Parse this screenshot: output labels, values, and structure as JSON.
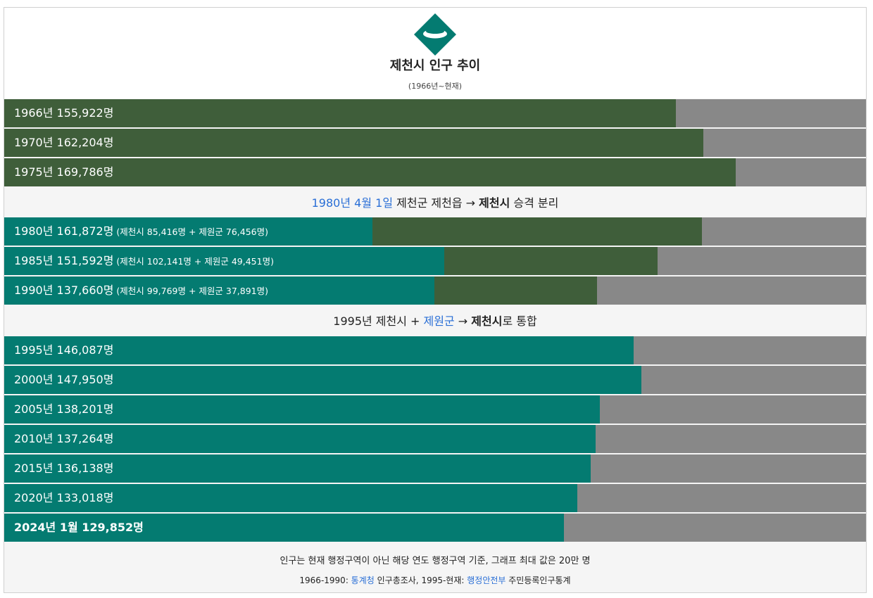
{
  "header": {
    "title": "제천시 인구 추이",
    "subtitle": "(1966년~현재)"
  },
  "colors": {
    "jecheon_city": "#047b71",
    "jewon_gun": "#3f5e3a",
    "remainder": "#888888",
    "link": "#2a6fd6"
  },
  "notes": {
    "split": {
      "date": "1980년 4월 1일",
      "text_a": " 제천군 제천읍 → ",
      "bold": "제천시",
      "text_b": " 승격 분리"
    },
    "merge": {
      "text_a": "1995년 제천시 + ",
      "link": "제원군",
      "text_b": " → ",
      "bold": "제천시",
      "text_c": "로 통합"
    }
  },
  "footer": {
    "line1": "인구는 현재 행정구역이 아닌 해당 연도 행정구역 기준, 그래프 최대 값은 20만 명",
    "line2_a": "1966-1990: ",
    "line2_link1": "통계청",
    "line2_b": " 인구총조사, 1995-현재: ",
    "line2_link2": "행정안전부",
    "line2_c": " 주민등록인구통계"
  },
  "chart_data": {
    "type": "bar",
    "orientation": "horizontal",
    "stacked": true,
    "title": "제천시 인구 추이",
    "xlim": [
      0,
      200000
    ],
    "series": [
      {
        "name": "제천시",
        "color": "#047b71"
      },
      {
        "name": "제원군",
        "color": "#3f5e3a"
      }
    ],
    "groups": [
      {
        "rows": [
          {
            "label": "1966년 155,922명",
            "segments": [
              {
                "series": "제천군",
                "value": 155922,
                "color": "#3f5e3a"
              }
            ]
          },
          {
            "label": "1970년 162,204명",
            "segments": [
              {
                "series": "제천군",
                "value": 162204,
                "color": "#3f5e3a"
              }
            ]
          },
          {
            "label": "1975년 169,786명",
            "segments": [
              {
                "series": "제천군",
                "value": 169786,
                "color": "#3f5e3a"
              }
            ]
          }
        ]
      },
      {
        "rows": [
          {
            "label": "1980년 161,872명",
            "detail": "(제천시 85,416명 + 제원군 76,456명)",
            "segments": [
              {
                "series": "제천시",
                "value": 85416,
                "color": "#047b71"
              },
              {
                "series": "제원군",
                "value": 76456,
                "color": "#3f5e3a"
              }
            ]
          },
          {
            "label": "1985년 151,592명",
            "detail": "(제천시 102,141명 + 제원군 49,451명)",
            "segments": [
              {
                "series": "제천시",
                "value": 102141,
                "color": "#047b71"
              },
              {
                "series": "제원군",
                "value": 49451,
                "color": "#3f5e3a"
              }
            ]
          },
          {
            "label": "1990년 137,660명",
            "detail": "(제천시 99,769명 + 제원군 37,891명)",
            "segments": [
              {
                "series": "제천시",
                "value": 99769,
                "color": "#047b71"
              },
              {
                "series": "제원군",
                "value": 37891,
                "color": "#3f5e3a"
              }
            ]
          }
        ]
      },
      {
        "rows": [
          {
            "label": "1995년 146,087명",
            "segments": [
              {
                "series": "제천시",
                "value": 146087,
                "color": "#047b71"
              }
            ]
          },
          {
            "label": "2000년 147,950명",
            "segments": [
              {
                "series": "제천시",
                "value": 147950,
                "color": "#047b71"
              }
            ]
          },
          {
            "label": "2005년 138,201명",
            "segments": [
              {
                "series": "제천시",
                "value": 138201,
                "color": "#047b71"
              }
            ]
          },
          {
            "label": "2010년 137,264명",
            "segments": [
              {
                "series": "제천시",
                "value": 137264,
                "color": "#047b71"
              }
            ]
          },
          {
            "label": "2015년 136,138명",
            "segments": [
              {
                "series": "제천시",
                "value": 136138,
                "color": "#047b71"
              }
            ]
          },
          {
            "label": "2020년 133,018명",
            "segments": [
              {
                "series": "제천시",
                "value": 133018,
                "color": "#047b71"
              }
            ]
          },
          {
            "label": "2024년 1월 129,852명",
            "bold": true,
            "segments": [
              {
                "series": "제천시",
                "value": 129852,
                "color": "#047b71"
              }
            ]
          }
        ]
      }
    ]
  }
}
